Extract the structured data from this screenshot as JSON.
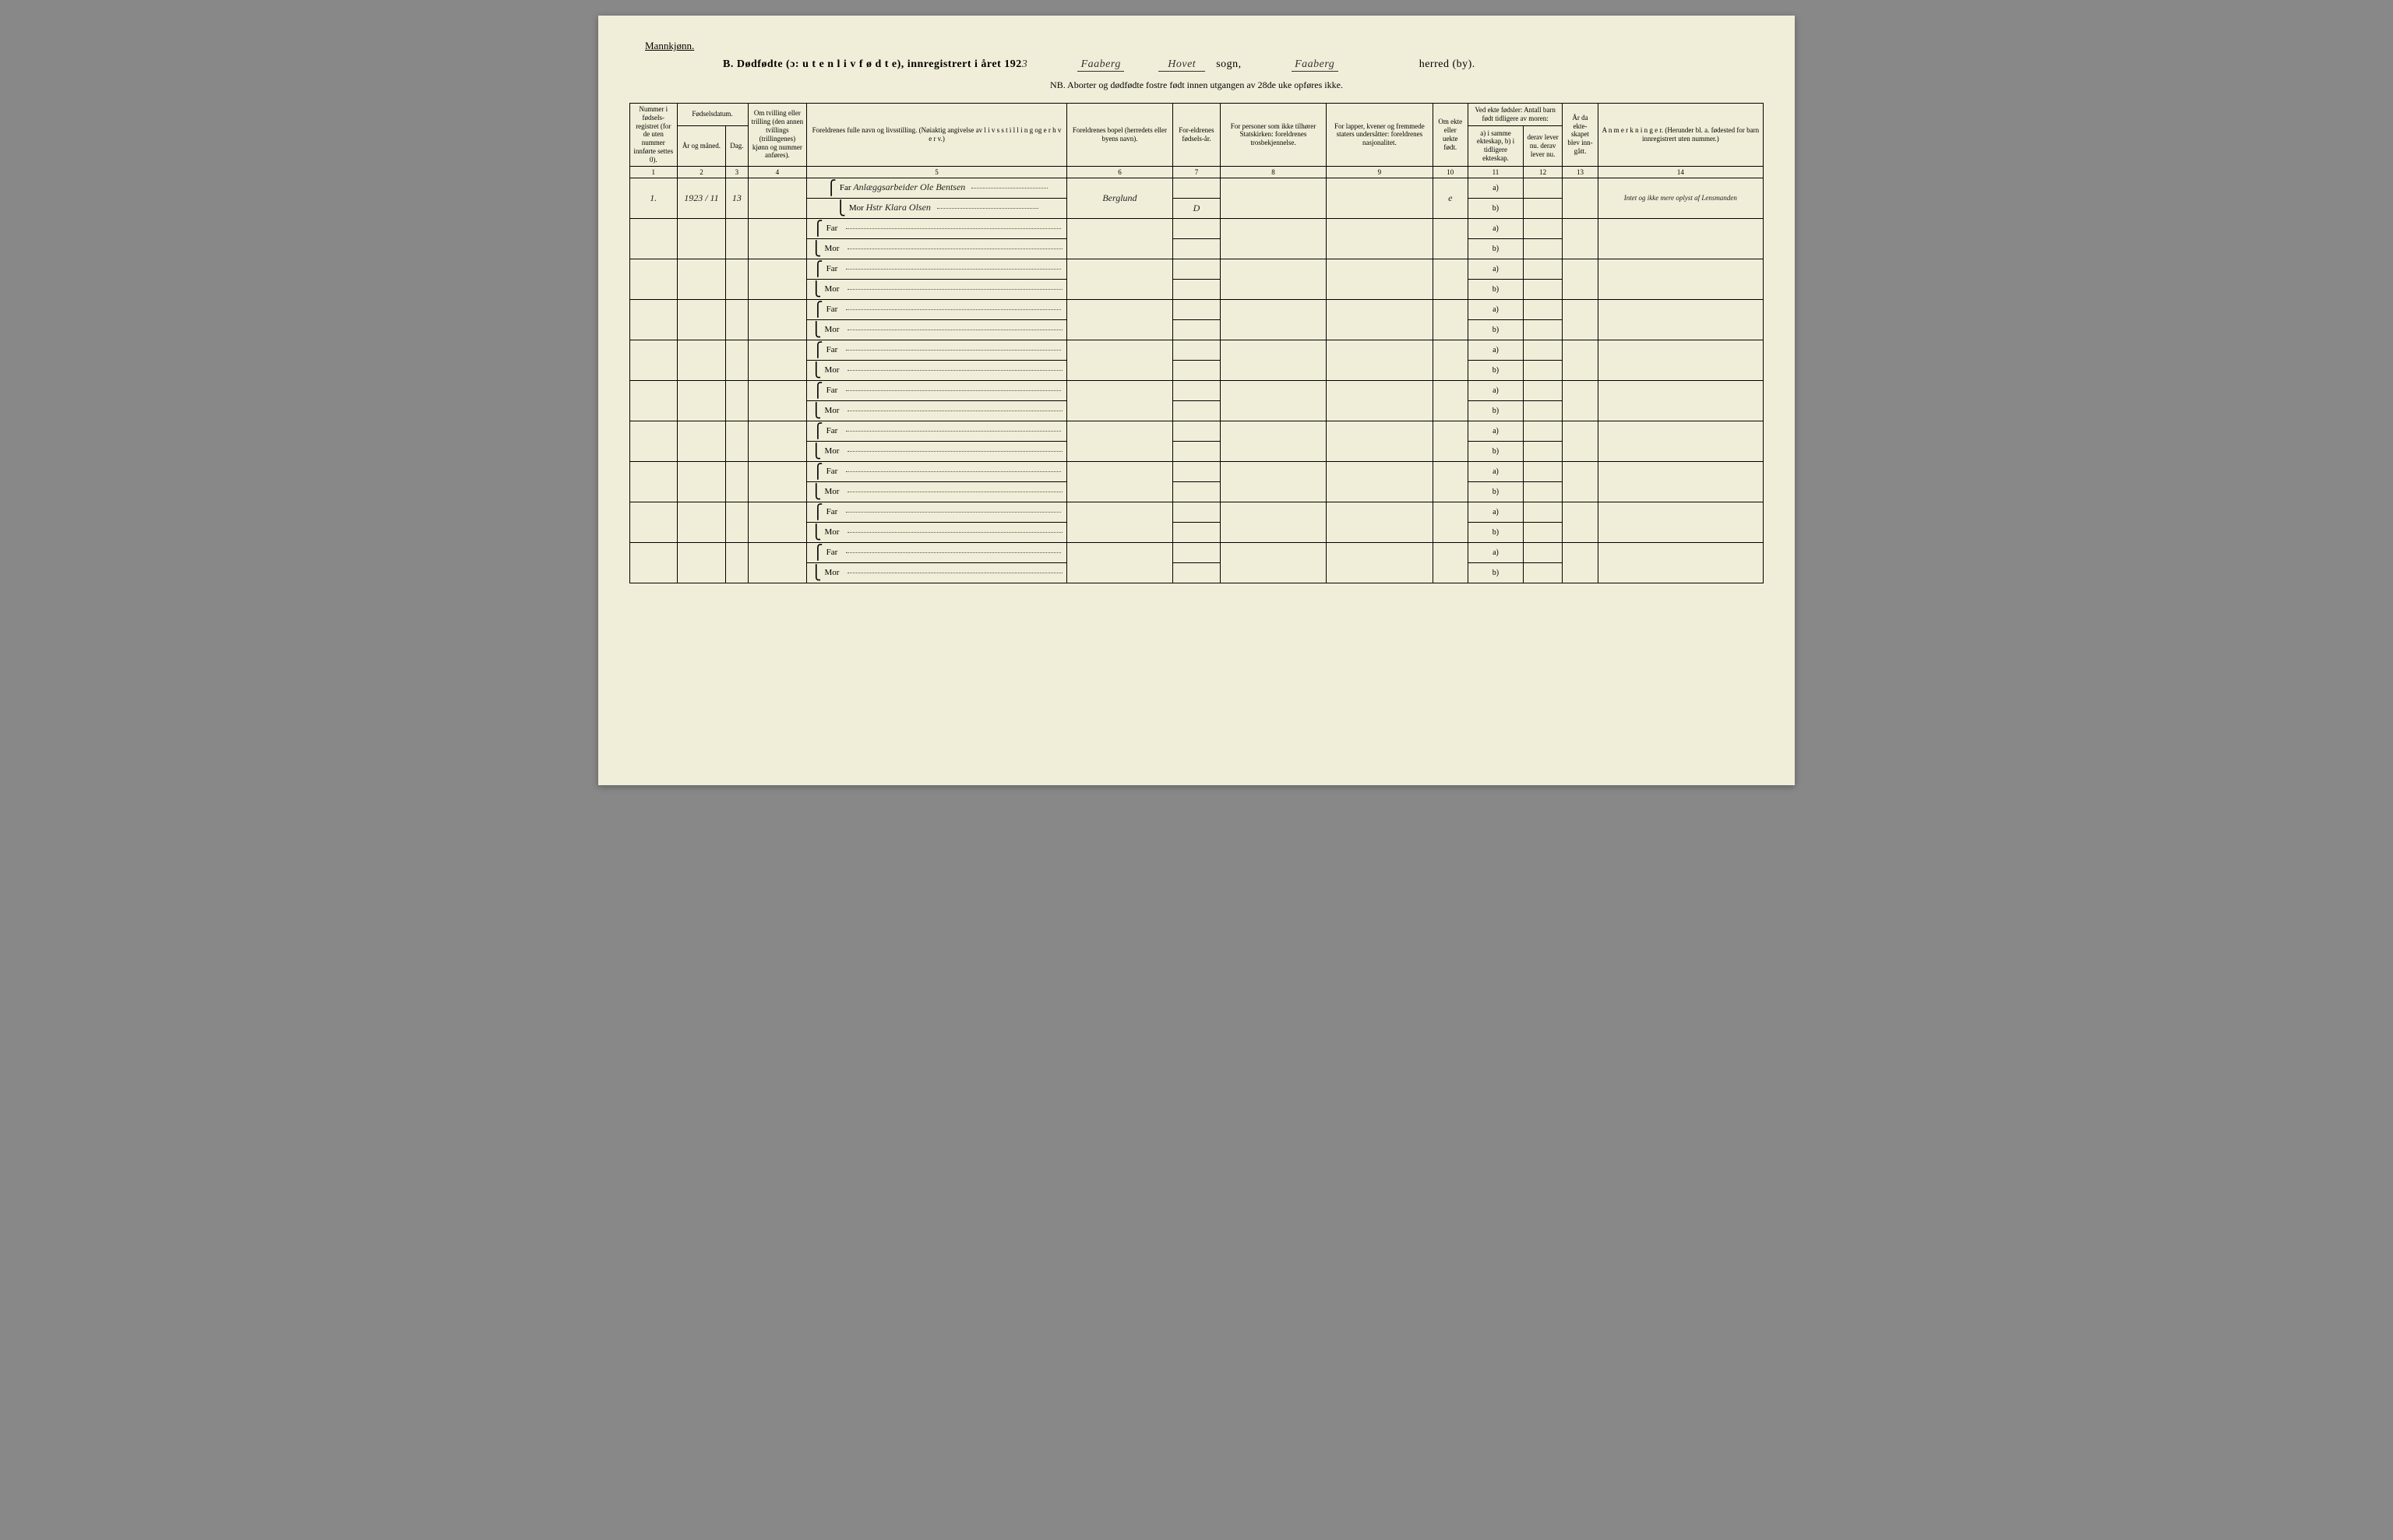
{
  "page": {
    "background_color": "#f0eed8",
    "gender_label": "Mannkjønn.",
    "title_prefix": "B.  Dødfødte (ɔ:  u t e n  l i v  f ø d t e),  innregistrert i året 192",
    "year_suffix_hw": "3",
    "parish_hw_1": "Faaberg",
    "parish_hw_2": "Hovet",
    "sogn_label": "sogn,",
    "herred_hw": "Faaberg",
    "herred_label": "herred (by).",
    "subtitle": "NB. Aborter og dødfødte fostre født innen utgangen av 28de uke opføres ikke."
  },
  "columns": {
    "c1": "Nummer i fødsels-registret (for de uten nummer innførte settes 0).",
    "c2_3_header": "Fødselsdatum.",
    "c2": "År og måned.",
    "c3": "Dag.",
    "c4": "Om tvilling eller trilling (den annen tvillings (trillingenes) kjønn og nummer anføres).",
    "c5": "Foreldrenes fulle navn og livsstilling. (Nøiaktig angivelse av l i v s s t i l l i n g  og  e r h v e r v.)",
    "c6": "Foreldrenes bopel (herredets eller byens navn).",
    "c7": "For-eldrenes fødsels-år.",
    "c8": "For personer som ikke tilhører Statskirken: foreldrenes trosbekjennelse.",
    "c9": "For lapper, kvener og fremmede staters undersåtter: foreldrenes nasjonalitet.",
    "c10": "Om ekte eller uekte født.",
    "c11_12_header": "Ved ekte fødsler: Antall barn født tidligere av moren:",
    "c11": "a) i samme ekteskap, b) i tidligere ekteskap.",
    "c12": "derav lever nu. derav lever nu.",
    "c13": "År da ekte-skapet blev inn-gått.",
    "c14": "A n m e r k n i n g e r. (Herunder bl. a. fødested for barn innregistrert uten nummer.)"
  },
  "colnums": [
    "1",
    "2",
    "3",
    "4",
    "5",
    "6",
    "7",
    "8",
    "9",
    "10",
    "11",
    "12",
    "13",
    "14"
  ],
  "row_labels": {
    "far": "Far",
    "mor": "Mor",
    "a": "a)",
    "b": "b)"
  },
  "entries": [
    {
      "num": "1.",
      "year_month": "1923 / 11",
      "day": "13",
      "far_name": "Anlæggsarbeider Ole Bentsen",
      "mor_name": "Hstr Klara Olsen",
      "bopel": "Berglund",
      "far_fodselsaar": "",
      "mor_fodselsaar": "D",
      "ekte": "e",
      "remark": "Intet og ikke mere oplyst af Lensmanden"
    }
  ],
  "empty_row_count": 9
}
